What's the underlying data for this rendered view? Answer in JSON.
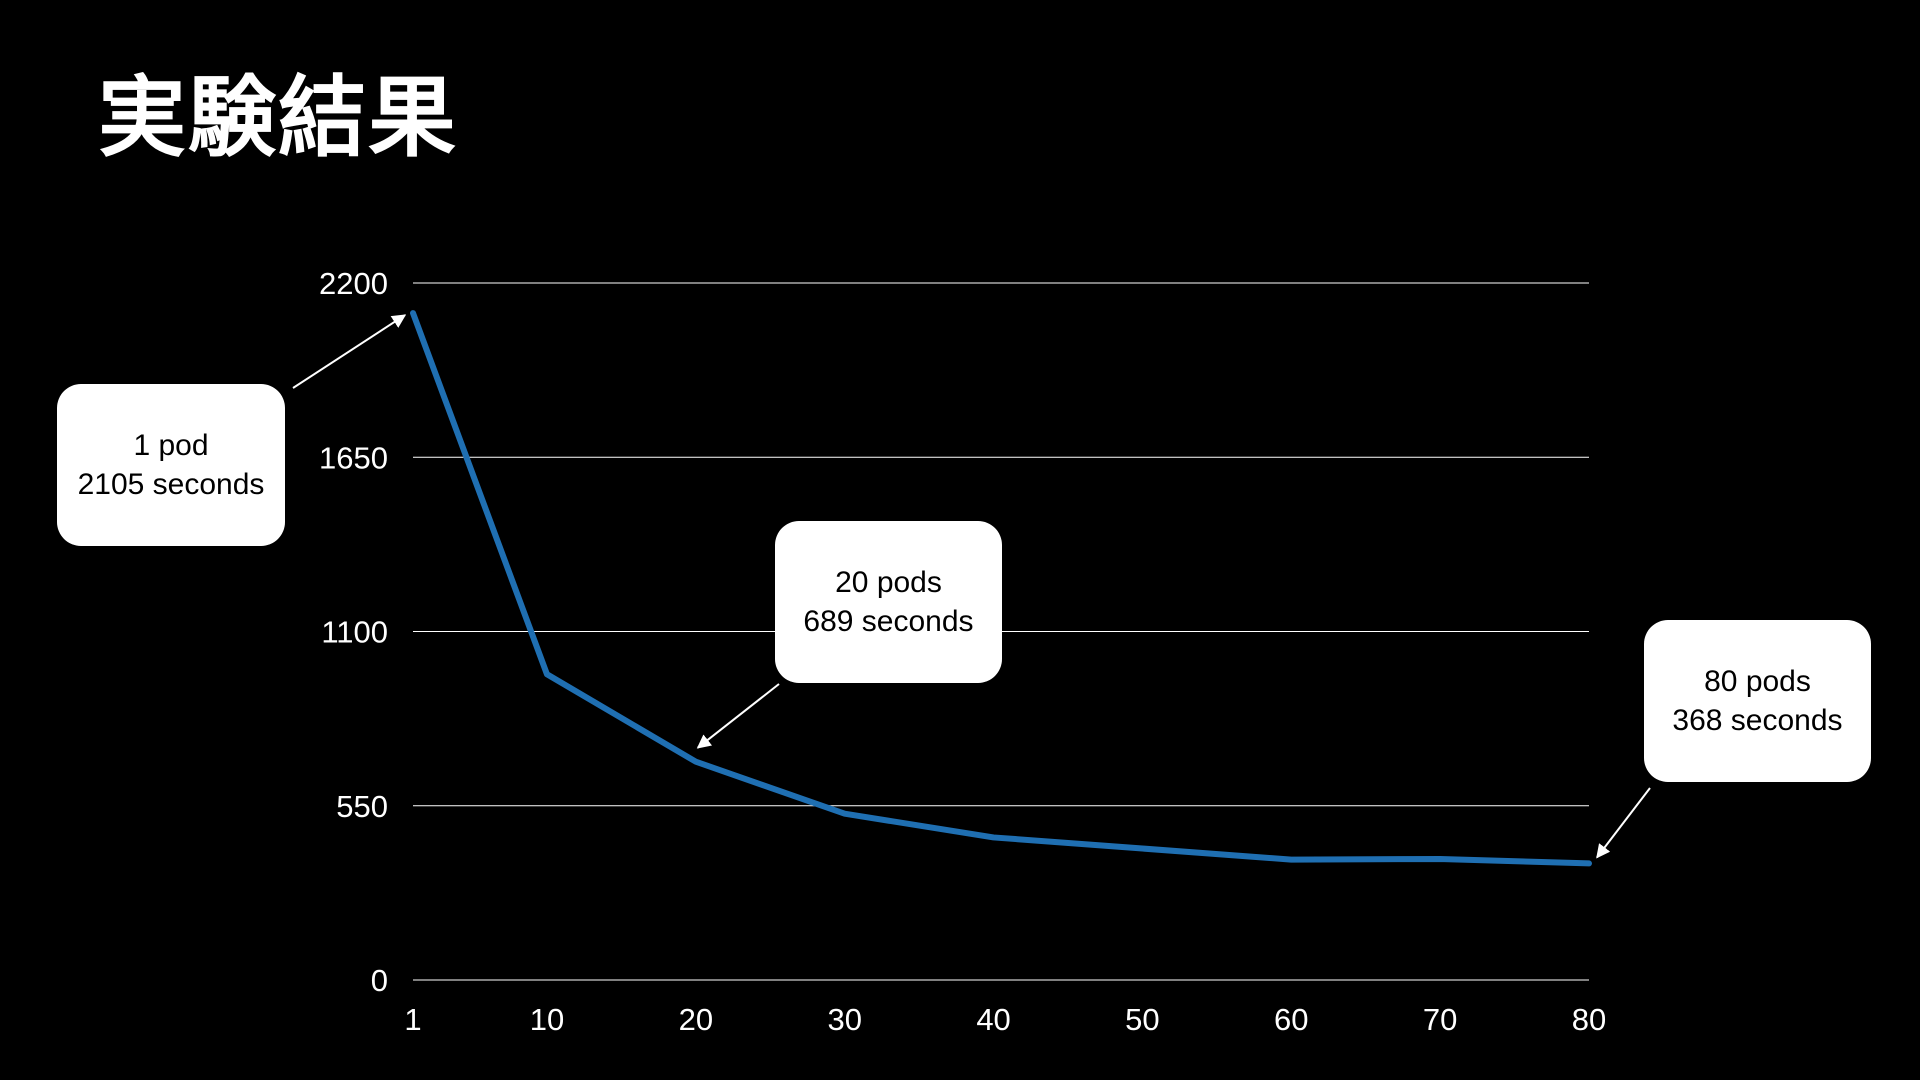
{
  "title": "実験結果",
  "colors": {
    "background": "#000000",
    "series": "#1f6fb2",
    "grid": "#ffffff",
    "text": "#ffffff",
    "callout_bg": "#ffffff",
    "callout_text": "#000000"
  },
  "chart_data": {
    "type": "line",
    "x": [
      1,
      10,
      20,
      30,
      40,
      50,
      60,
      70,
      80
    ],
    "x_tick_labels": [
      "1",
      "10",
      "20",
      "30",
      "40",
      "50",
      "60",
      "70",
      "80"
    ],
    "series": [
      {
        "values": [
          2105,
          965,
          689,
          525,
          450,
          415,
          380,
          382,
          368
        ]
      }
    ],
    "ylim": [
      0,
      2200
    ],
    "y_ticks": [
      0,
      550,
      1100,
      1650,
      2200
    ],
    "y_tick_labels": [
      "0",
      "550",
      "1100",
      "1650",
      "2200"
    ],
    "grid": true,
    "annotations": [
      {
        "line1": "1 pod",
        "line2": "2105 seconds",
        "x": 1,
        "y": 2105
      },
      {
        "line1": "20 pods",
        "line2": "689 seconds",
        "x": 20,
        "y": 689
      },
      {
        "line1": "80 pods",
        "line2": "368 seconds",
        "x": 80,
        "y": 368
      }
    ]
  }
}
